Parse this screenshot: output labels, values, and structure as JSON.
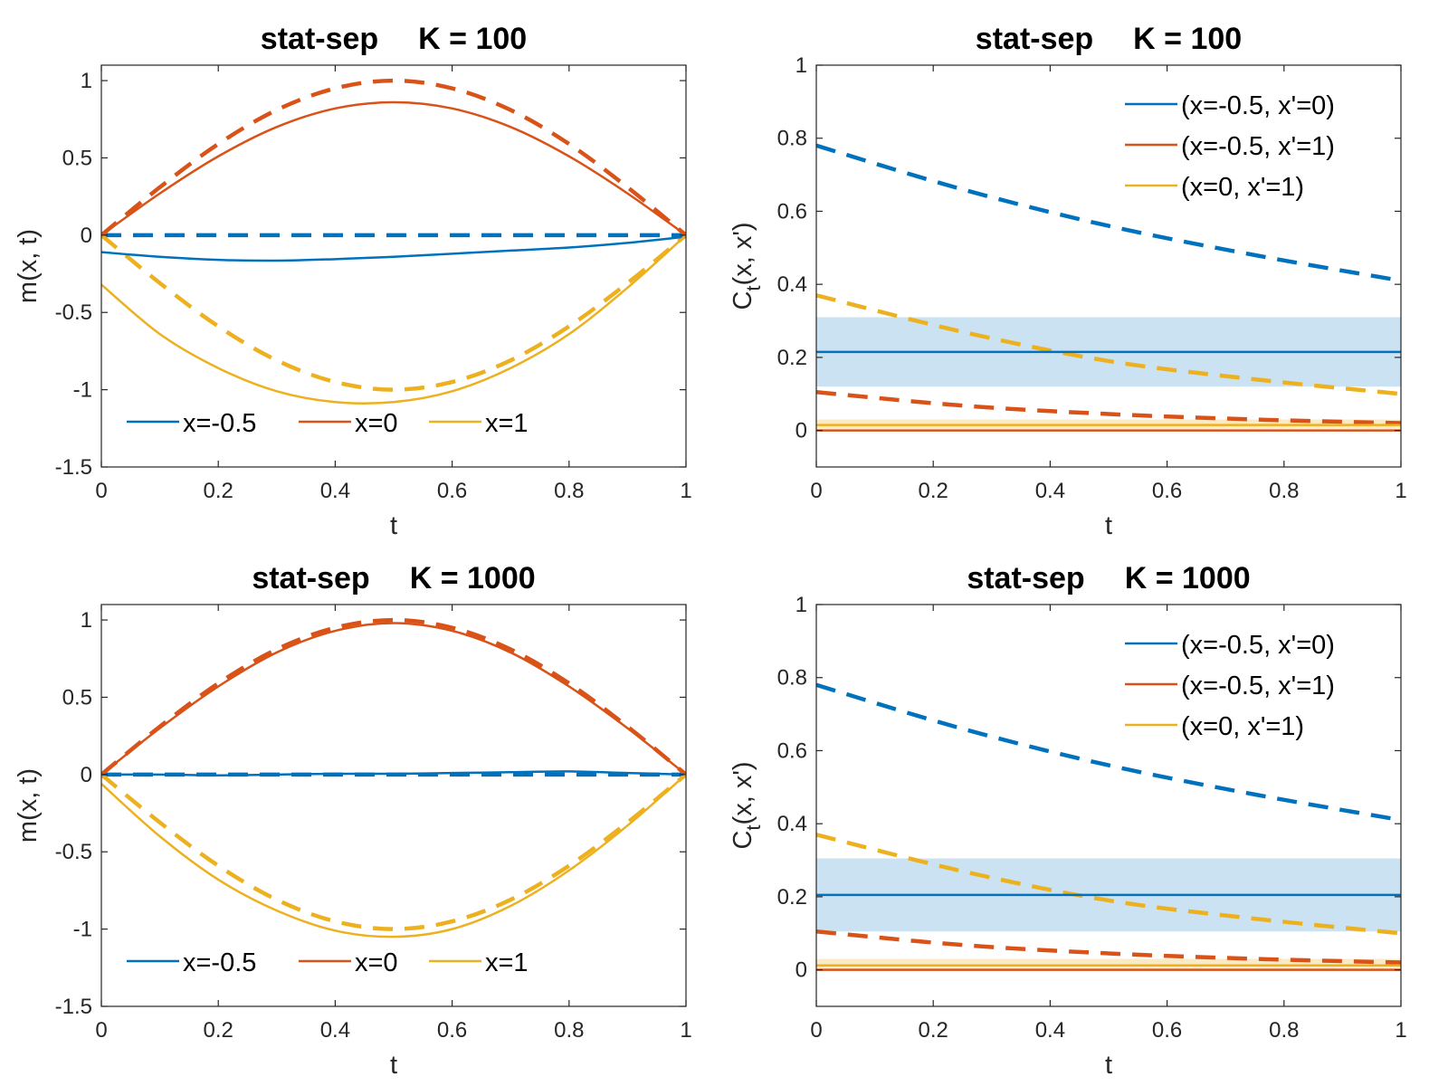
{
  "colors": {
    "blue": "#0072BD",
    "orange": "#D95319",
    "yellow": "#EDB120",
    "band": "#9FCAE6",
    "yband": "#F7DEA0"
  },
  "chart_data": [
    {
      "id": "p1",
      "type": "line",
      "title_left": "stat-sep",
      "title_right": "K = 100",
      "xlabel": "t",
      "ylabel": "m(x, t)",
      "xlim": [
        0,
        1
      ],
      "ylim": [
        -1.5,
        1.1
      ],
      "xticks": [
        0,
        0.2,
        0.4,
        0.6,
        0.8,
        1
      ],
      "xtick_labels": [
        "0",
        "0.2",
        "0.4",
        "0.6",
        "0.8",
        "1"
      ],
      "yticks": [
        -1.5,
        -1,
        -0.5,
        0,
        0.5,
        1
      ],
      "ytick_labels": [
        "-1.5",
        "-1",
        "-0.5",
        "0",
        "0.5",
        "1"
      ],
      "legend": {
        "placement": "bottom-horizontal",
        "entries": [
          {
            "label": "x=-0.5",
            "color": "#0072BD"
          },
          {
            "label": "x=0",
            "color": "#D95319"
          },
          {
            "label": "x=1",
            "color": "#EDB120"
          }
        ]
      },
      "series": [
        {
          "name": "x=-0.5 exact",
          "color": "#0072BD",
          "dashed": true,
          "x": [
            0,
            1
          ],
          "y": [
            0,
            0
          ]
        },
        {
          "name": "x=0 exact",
          "color": "#D95319",
          "dashed": true,
          "x": [
            0,
            0.1,
            0.2,
            0.3,
            0.4,
            0.5,
            0.6,
            0.7,
            0.8,
            0.9,
            1
          ],
          "y": [
            0,
            0.31,
            0.59,
            0.81,
            0.95,
            1.0,
            0.95,
            0.81,
            0.59,
            0.31,
            0
          ]
        },
        {
          "name": "x=1 exact",
          "color": "#EDB120",
          "dashed": true,
          "x": [
            0,
            0.1,
            0.2,
            0.3,
            0.4,
            0.5,
            0.6,
            0.7,
            0.8,
            0.9,
            1
          ],
          "y": [
            0,
            -0.31,
            -0.59,
            -0.81,
            -0.95,
            -1.0,
            -0.95,
            -0.81,
            -0.59,
            -0.31,
            0
          ]
        },
        {
          "name": "x=-0.5 estimate",
          "color": "#0072BD",
          "dashed": false,
          "x": [
            0,
            0.1,
            0.2,
            0.3,
            0.4,
            0.5,
            0.6,
            0.7,
            0.8,
            0.9,
            1
          ],
          "y": [
            -0.11,
            -0.14,
            -0.16,
            -0.165,
            -0.155,
            -0.14,
            -0.12,
            -0.1,
            -0.08,
            -0.05,
            -0.01
          ]
        },
        {
          "name": "x=0 estimate",
          "color": "#D95319",
          "dashed": false,
          "x": [
            0,
            0.1,
            0.2,
            0.3,
            0.4,
            0.5,
            0.6,
            0.7,
            0.8,
            0.9,
            1
          ],
          "y": [
            0,
            0.27,
            0.51,
            0.7,
            0.82,
            0.86,
            0.82,
            0.7,
            0.51,
            0.27,
            0
          ]
        },
        {
          "name": "x=1 estimate",
          "color": "#EDB120",
          "dashed": false,
          "x": [
            0,
            0.1,
            0.2,
            0.3,
            0.4,
            0.5,
            0.6,
            0.7,
            0.8,
            0.9,
            1
          ],
          "y": [
            -0.32,
            -0.64,
            -0.86,
            -1.01,
            -1.08,
            -1.08,
            -1.01,
            -0.86,
            -0.64,
            -0.34,
            0.0
          ]
        }
      ]
    },
    {
      "id": "p2",
      "type": "line",
      "title_left": "stat-sep",
      "title_right": "K = 100",
      "xlabel": "t",
      "ylabel": "C_t(x, x')",
      "xlim": [
        0,
        1
      ],
      "ylim": [
        -0.1,
        1
      ],
      "xticks": [
        0,
        0.2,
        0.4,
        0.6,
        0.8,
        1
      ],
      "xtick_labels": [
        "0",
        "0.2",
        "0.4",
        "0.6",
        "0.8",
        "1"
      ],
      "yticks": [
        0,
        0.2,
        0.4,
        0.6,
        0.8,
        1
      ],
      "ytick_labels": [
        "0",
        "0.2",
        "0.4",
        "0.6",
        "0.8",
        "1"
      ],
      "legend": {
        "placement": "top-right",
        "entries": [
          {
            "label": "(x=-0.5, x'=0)",
            "color": "#0072BD"
          },
          {
            "label": "(x=-0.5, x'=1)",
            "color": "#D95319"
          },
          {
            "label": "(x=0, x'=1)",
            "color": "#EDB120"
          }
        ]
      },
      "bands": [
        {
          "color": "#9FCAE6",
          "opacity": 0.55,
          "y_low": 0.12,
          "y_high": 0.31
        },
        {
          "color": "#F7DEA0",
          "opacity": 0.6,
          "y_low": 0.005,
          "y_high": 0.03
        }
      ],
      "series": [
        {
          "name": "(x=-0.5, x'=0) exact",
          "color": "#0072BD",
          "dashed": true,
          "x": [
            0,
            0.25,
            0.5,
            0.75,
            1
          ],
          "y": [
            0.78,
            0.66,
            0.56,
            0.48,
            0.41
          ]
        },
        {
          "name": "(x=0, x'=1) exact",
          "color": "#EDB120",
          "dashed": true,
          "x": [
            0,
            0.25,
            0.5,
            0.75,
            1
          ],
          "y": [
            0.37,
            0.27,
            0.19,
            0.14,
            0.1
          ]
        },
        {
          "name": "(x=-0.5, x'=1) exact",
          "color": "#D95319",
          "dashed": true,
          "x": [
            0,
            0.25,
            0.5,
            0.75,
            1
          ],
          "y": [
            0.105,
            0.068,
            0.045,
            0.03,
            0.02
          ]
        },
        {
          "name": "(x=-0.5, x'=0) estimate",
          "color": "#0072BD",
          "dashed": false,
          "x": [
            0,
            1
          ],
          "y": [
            0.215,
            0.215
          ]
        },
        {
          "name": "(x=0, x'=1) estimate",
          "color": "#EDB120",
          "dashed": false,
          "x": [
            0,
            1
          ],
          "y": [
            0.015,
            0.015
          ]
        },
        {
          "name": "(x=-0.5, x'=1) estimate",
          "color": "#D95319",
          "dashed": false,
          "x": [
            0,
            1
          ],
          "y": [
            0.0,
            0.0
          ]
        }
      ]
    },
    {
      "id": "p3",
      "type": "line",
      "title_left": "stat-sep",
      "title_right": "K = 1000",
      "xlabel": "t",
      "ylabel": "m(x, t)",
      "xlim": [
        0,
        1
      ],
      "ylim": [
        -1.5,
        1.1
      ],
      "xticks": [
        0,
        0.2,
        0.4,
        0.6,
        0.8,
        1
      ],
      "xtick_labels": [
        "0",
        "0.2",
        "0.4",
        "0.6",
        "0.8",
        "1"
      ],
      "yticks": [
        -1.5,
        -1,
        -0.5,
        0,
        0.5,
        1
      ],
      "ytick_labels": [
        "-1.5",
        "-1",
        "-0.5",
        "0",
        "0.5",
        "1"
      ],
      "legend": {
        "placement": "bottom-horizontal",
        "entries": [
          {
            "label": "x=-0.5",
            "color": "#0072BD"
          },
          {
            "label": "x=0",
            "color": "#D95319"
          },
          {
            "label": "x=1",
            "color": "#EDB120"
          }
        ]
      },
      "series": [
        {
          "name": "x=-0.5 exact",
          "color": "#0072BD",
          "dashed": true,
          "x": [
            0,
            1
          ],
          "y": [
            0,
            0
          ]
        },
        {
          "name": "x=0 exact",
          "color": "#D95319",
          "dashed": true,
          "x": [
            0,
            0.1,
            0.2,
            0.3,
            0.4,
            0.5,
            0.6,
            0.7,
            0.8,
            0.9,
            1
          ],
          "y": [
            0,
            0.31,
            0.59,
            0.81,
            0.95,
            1.0,
            0.95,
            0.81,
            0.59,
            0.31,
            0
          ]
        },
        {
          "name": "x=1 exact",
          "color": "#EDB120",
          "dashed": true,
          "x": [
            0,
            0.1,
            0.2,
            0.3,
            0.4,
            0.5,
            0.6,
            0.7,
            0.8,
            0.9,
            1
          ],
          "y": [
            0,
            -0.31,
            -0.59,
            -0.81,
            -0.95,
            -1.0,
            -0.95,
            -0.81,
            -0.59,
            -0.31,
            0
          ]
        },
        {
          "name": "x=-0.5 estimate",
          "color": "#0072BD",
          "dashed": false,
          "x": [
            0,
            0.1,
            0.2,
            0.3,
            0.4,
            0.5,
            0.6,
            0.7,
            0.8,
            0.9,
            1
          ],
          "y": [
            0,
            0.0,
            -0.005,
            0.0,
            0.005,
            0.005,
            0.01,
            0.015,
            0.02,
            0.01,
            0
          ]
        },
        {
          "name": "x=0 estimate",
          "color": "#D95319",
          "dashed": false,
          "x": [
            0,
            0.1,
            0.2,
            0.3,
            0.4,
            0.5,
            0.6,
            0.7,
            0.8,
            0.9,
            1
          ],
          "y": [
            0,
            0.3,
            0.57,
            0.79,
            0.93,
            0.98,
            0.93,
            0.79,
            0.57,
            0.3,
            0
          ]
        },
        {
          "name": "x=1 estimate",
          "color": "#EDB120",
          "dashed": false,
          "x": [
            0,
            0.1,
            0.2,
            0.3,
            0.4,
            0.5,
            0.6,
            0.7,
            0.8,
            0.9,
            1
          ],
          "y": [
            -0.06,
            -0.4,
            -0.68,
            -0.88,
            -1.01,
            -1.05,
            -1.0,
            -0.85,
            -0.62,
            -0.33,
            0
          ]
        }
      ]
    },
    {
      "id": "p4",
      "type": "line",
      "title_left": "stat-sep",
      "title_right": "K = 1000",
      "xlabel": "t",
      "ylabel": "C_t(x, x')",
      "xlim": [
        0,
        1
      ],
      "ylim": [
        -0.1,
        1
      ],
      "xticks": [
        0,
        0.2,
        0.4,
        0.6,
        0.8,
        1
      ],
      "xtick_labels": [
        "0",
        "0.2",
        "0.4",
        "0.6",
        "0.8",
        "1"
      ],
      "yticks": [
        0,
        0.2,
        0.4,
        0.6,
        0.8,
        1
      ],
      "ytick_labels": [
        "0",
        "0.2",
        "0.4",
        "0.6",
        "0.8",
        "1"
      ],
      "legend": {
        "placement": "top-right",
        "entries": [
          {
            "label": "(x=-0.5, x'=0)",
            "color": "#0072BD"
          },
          {
            "label": "(x=-0.5, x'=1)",
            "color": "#D95319"
          },
          {
            "label": "(x=0, x'=1)",
            "color": "#EDB120"
          }
        ]
      },
      "bands": [
        {
          "color": "#9FCAE6",
          "opacity": 0.55,
          "y_low": 0.105,
          "y_high": 0.305
        },
        {
          "color": "#F7DEA0",
          "opacity": 0.6,
          "y_low": 0.0,
          "y_high": 0.03
        }
      ],
      "series": [
        {
          "name": "(x=-0.5, x'=0) exact",
          "color": "#0072BD",
          "dashed": true,
          "x": [
            0,
            0.25,
            0.5,
            0.75,
            1
          ],
          "y": [
            0.78,
            0.66,
            0.56,
            0.48,
            0.41
          ]
        },
        {
          "name": "(x=0, x'=1) exact",
          "color": "#EDB120",
          "dashed": true,
          "x": [
            0,
            0.25,
            0.5,
            0.75,
            1
          ],
          "y": [
            0.37,
            0.27,
            0.19,
            0.14,
            0.1
          ]
        },
        {
          "name": "(x=-0.5, x'=1) exact",
          "color": "#D95319",
          "dashed": true,
          "x": [
            0,
            0.25,
            0.5,
            0.75,
            1
          ],
          "y": [
            0.105,
            0.068,
            0.045,
            0.03,
            0.02
          ]
        },
        {
          "name": "(x=-0.5, x'=0) estimate",
          "color": "#0072BD",
          "dashed": false,
          "x": [
            0,
            1
          ],
          "y": [
            0.205,
            0.205
          ]
        },
        {
          "name": "(x=0, x'=1) estimate",
          "color": "#EDB120",
          "dashed": false,
          "x": [
            0,
            1
          ],
          "y": [
            0.012,
            0.012
          ]
        },
        {
          "name": "(x=-0.5, x'=1) estimate",
          "color": "#D95319",
          "dashed": false,
          "x": [
            0,
            1
          ],
          "y": [
            0.0,
            0.0
          ]
        }
      ]
    }
  ]
}
